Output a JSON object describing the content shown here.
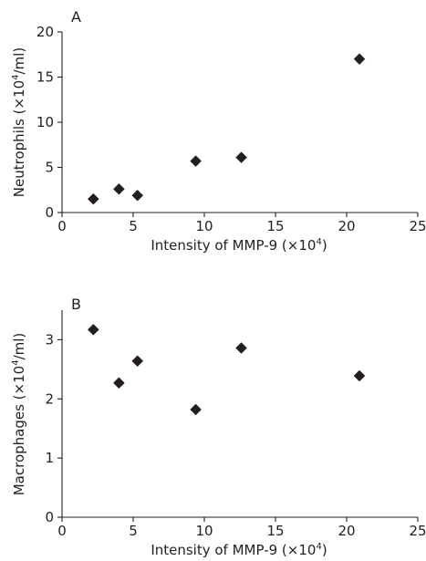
{
  "colors": {
    "ink": "#231f20",
    "marker": "#231f20",
    "background": "#ffffff"
  },
  "chart_data": [
    {
      "type": "scatter",
      "panel_label": "A",
      "xlabel": "Intensity of MMP-9 (×10",
      "xlabel_sup": "4",
      "xlabel_end": ")",
      "ylabel": "Neutrophils (×10",
      "ylabel_sup": "4",
      "ylabel_end": "/ml)",
      "xlim": [
        0,
        25
      ],
      "ylim": [
        0,
        20
      ],
      "xticks": [
        "0",
        "5",
        "10",
        "15",
        "20",
        "25"
      ],
      "yticks": [
        "0",
        "5",
        "10",
        "15",
        "20"
      ],
      "marker": "diamond",
      "grid": false,
      "points": [
        {
          "x": 2.2,
          "y": 1.5
        },
        {
          "x": 4.0,
          "y": 2.6
        },
        {
          "x": 5.3,
          "y": 1.9
        },
        {
          "x": 9.4,
          "y": 5.7
        },
        {
          "x": 12.6,
          "y": 6.1
        },
        {
          "x": 20.9,
          "y": 17.0
        }
      ]
    },
    {
      "type": "scatter",
      "panel_label": "B",
      "xlabel": "Intensity of MMP-9 (×10",
      "xlabel_sup": "4",
      "xlabel_end": ")",
      "ylabel": "Macrophages (×10",
      "ylabel_sup": "4",
      "ylabel_end": "/ml)",
      "xlim": [
        0,
        25
      ],
      "ylim": [
        0,
        3.5
      ],
      "xticks": [
        "0",
        "5",
        "10",
        "15",
        "20",
        "25"
      ],
      "yticks": [
        "0",
        "1",
        "2",
        "3"
      ],
      "ytick_values": [
        0,
        1,
        2,
        3
      ],
      "marker": "diamond",
      "grid": false,
      "points": [
        {
          "x": 2.2,
          "y": 3.17
        },
        {
          "x": 4.0,
          "y": 2.27
        },
        {
          "x": 5.3,
          "y": 2.64
        },
        {
          "x": 9.4,
          "y": 1.82
        },
        {
          "x": 12.6,
          "y": 2.86
        },
        {
          "x": 20.9,
          "y": 2.39
        }
      ]
    }
  ]
}
